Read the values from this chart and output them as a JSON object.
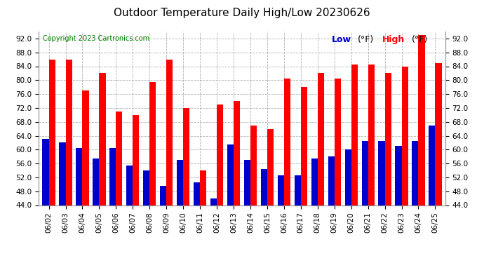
{
  "title": "Outdoor Temperature Daily High/Low 20230626",
  "copyright": "Copyright 2023 Cartronics.com",
  "legend_low": "Low",
  "legend_high": "High",
  "legend_unit": "(°F)",
  "ylim": [
    44.0,
    94.0
  ],
  "yticks": [
    44.0,
    48.0,
    52.0,
    56.0,
    60.0,
    64.0,
    68.0,
    72.0,
    76.0,
    80.0,
    84.0,
    88.0,
    92.0
  ],
  "dates": [
    "06/02",
    "06/03",
    "06/04",
    "06/05",
    "06/06",
    "06/07",
    "06/08",
    "06/09",
    "06/10",
    "06/11",
    "06/12",
    "06/13",
    "06/14",
    "06/15",
    "06/16",
    "06/17",
    "06/18",
    "06/19",
    "06/20",
    "06/21",
    "06/22",
    "06/23",
    "06/24",
    "06/25"
  ],
  "highs": [
    86.0,
    86.0,
    77.0,
    82.0,
    71.0,
    70.0,
    79.5,
    86.0,
    72.0,
    54.0,
    73.0,
    74.0,
    67.0,
    66.0,
    80.5,
    78.0,
    82.0,
    80.5,
    84.5,
    84.5,
    82.0,
    84.0,
    93.0,
    85.0
  ],
  "lows": [
    63.0,
    62.0,
    60.5,
    57.5,
    60.5,
    55.5,
    54.0,
    49.5,
    57.0,
    50.5,
    46.0,
    61.5,
    57.0,
    54.5,
    52.5,
    52.5,
    57.5,
    58.0,
    60.0,
    62.5,
    62.5,
    61.0,
    62.5,
    67.0
  ],
  "bar_width": 0.38,
  "high_color": "#ff0000",
  "low_color": "#0000cc",
  "background_color": "#ffffff",
  "grid_color": "#b0b0b0",
  "title_fontsize": 11,
  "tick_fontsize": 7.5,
  "copyright_fontsize": 7,
  "legend_fontsize": 9
}
